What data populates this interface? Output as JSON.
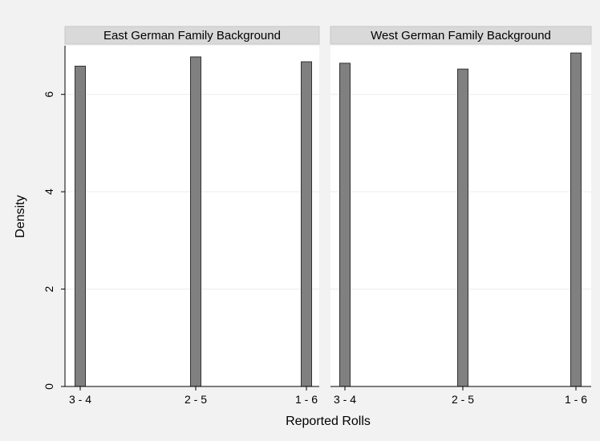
{
  "chart_data": {
    "type": "bar",
    "xlabel": "Reported Rolls",
    "ylabel": "Density",
    "ylim": [
      0,
      7
    ],
    "yticks": [
      0,
      2,
      4,
      6
    ],
    "grid": true,
    "categories": [
      "3 - 4",
      "2 - 5",
      "1 - 6"
    ],
    "panels": [
      {
        "title": "East German Family Background",
        "values": [
          6.58,
          6.77,
          6.67
        ]
      },
      {
        "title": "West German Family Background",
        "values": [
          6.64,
          6.52,
          6.85
        ]
      }
    ]
  },
  "colors": {
    "outer_background": "#f2f2f2",
    "plot_background": "#ffffff",
    "strip_background": "#d9d9d9",
    "bar_fill": "#808080",
    "bar_stroke": "#333333",
    "grid": "#ececec"
  }
}
